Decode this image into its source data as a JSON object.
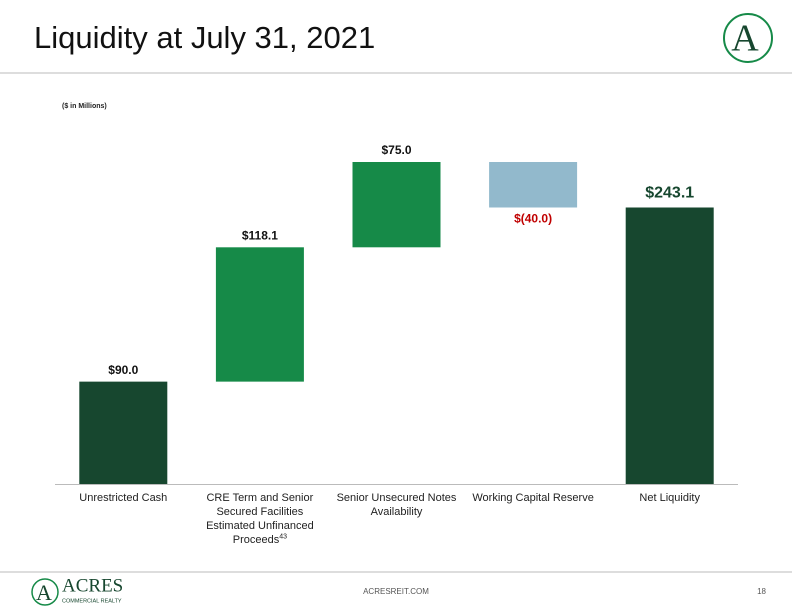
{
  "slide": {
    "title": "Liquidity at July 31, 2021",
    "footer": "ACRESREIT.COM",
    "page_number": "18",
    "logo_name": "ACRES",
    "logo_tagline": "COMMERCIAL REALTY"
  },
  "chart_data": {
    "type": "waterfall",
    "subtitle": "($ in Millions)",
    "categories": [
      "Unrestricted Cash",
      "CRE Term and Senior Secured Facilities Estimated Unfinanced Proceeds",
      "Senior Unsecured Notes Availability",
      "Working Capital Reserve",
      "Net Liquidity"
    ],
    "category_notes": [
      null,
      "43",
      null,
      null,
      null
    ],
    "values": [
      90.0,
      118.1,
      75.0,
      -40.0,
      243.1
    ],
    "value_labels": [
      "$90.0",
      "$118.1",
      "$75.0",
      "$(40.0)",
      "$243.1"
    ],
    "is_total": [
      false,
      false,
      false,
      false,
      true
    ],
    "colors": [
      "#17472f",
      "#168a48",
      "#168a48",
      "#92b9cc",
      "#17472f"
    ],
    "value_label_colors": [
      "#111111",
      "#111111",
      "#111111",
      "#c00000",
      "#17472f"
    ]
  }
}
